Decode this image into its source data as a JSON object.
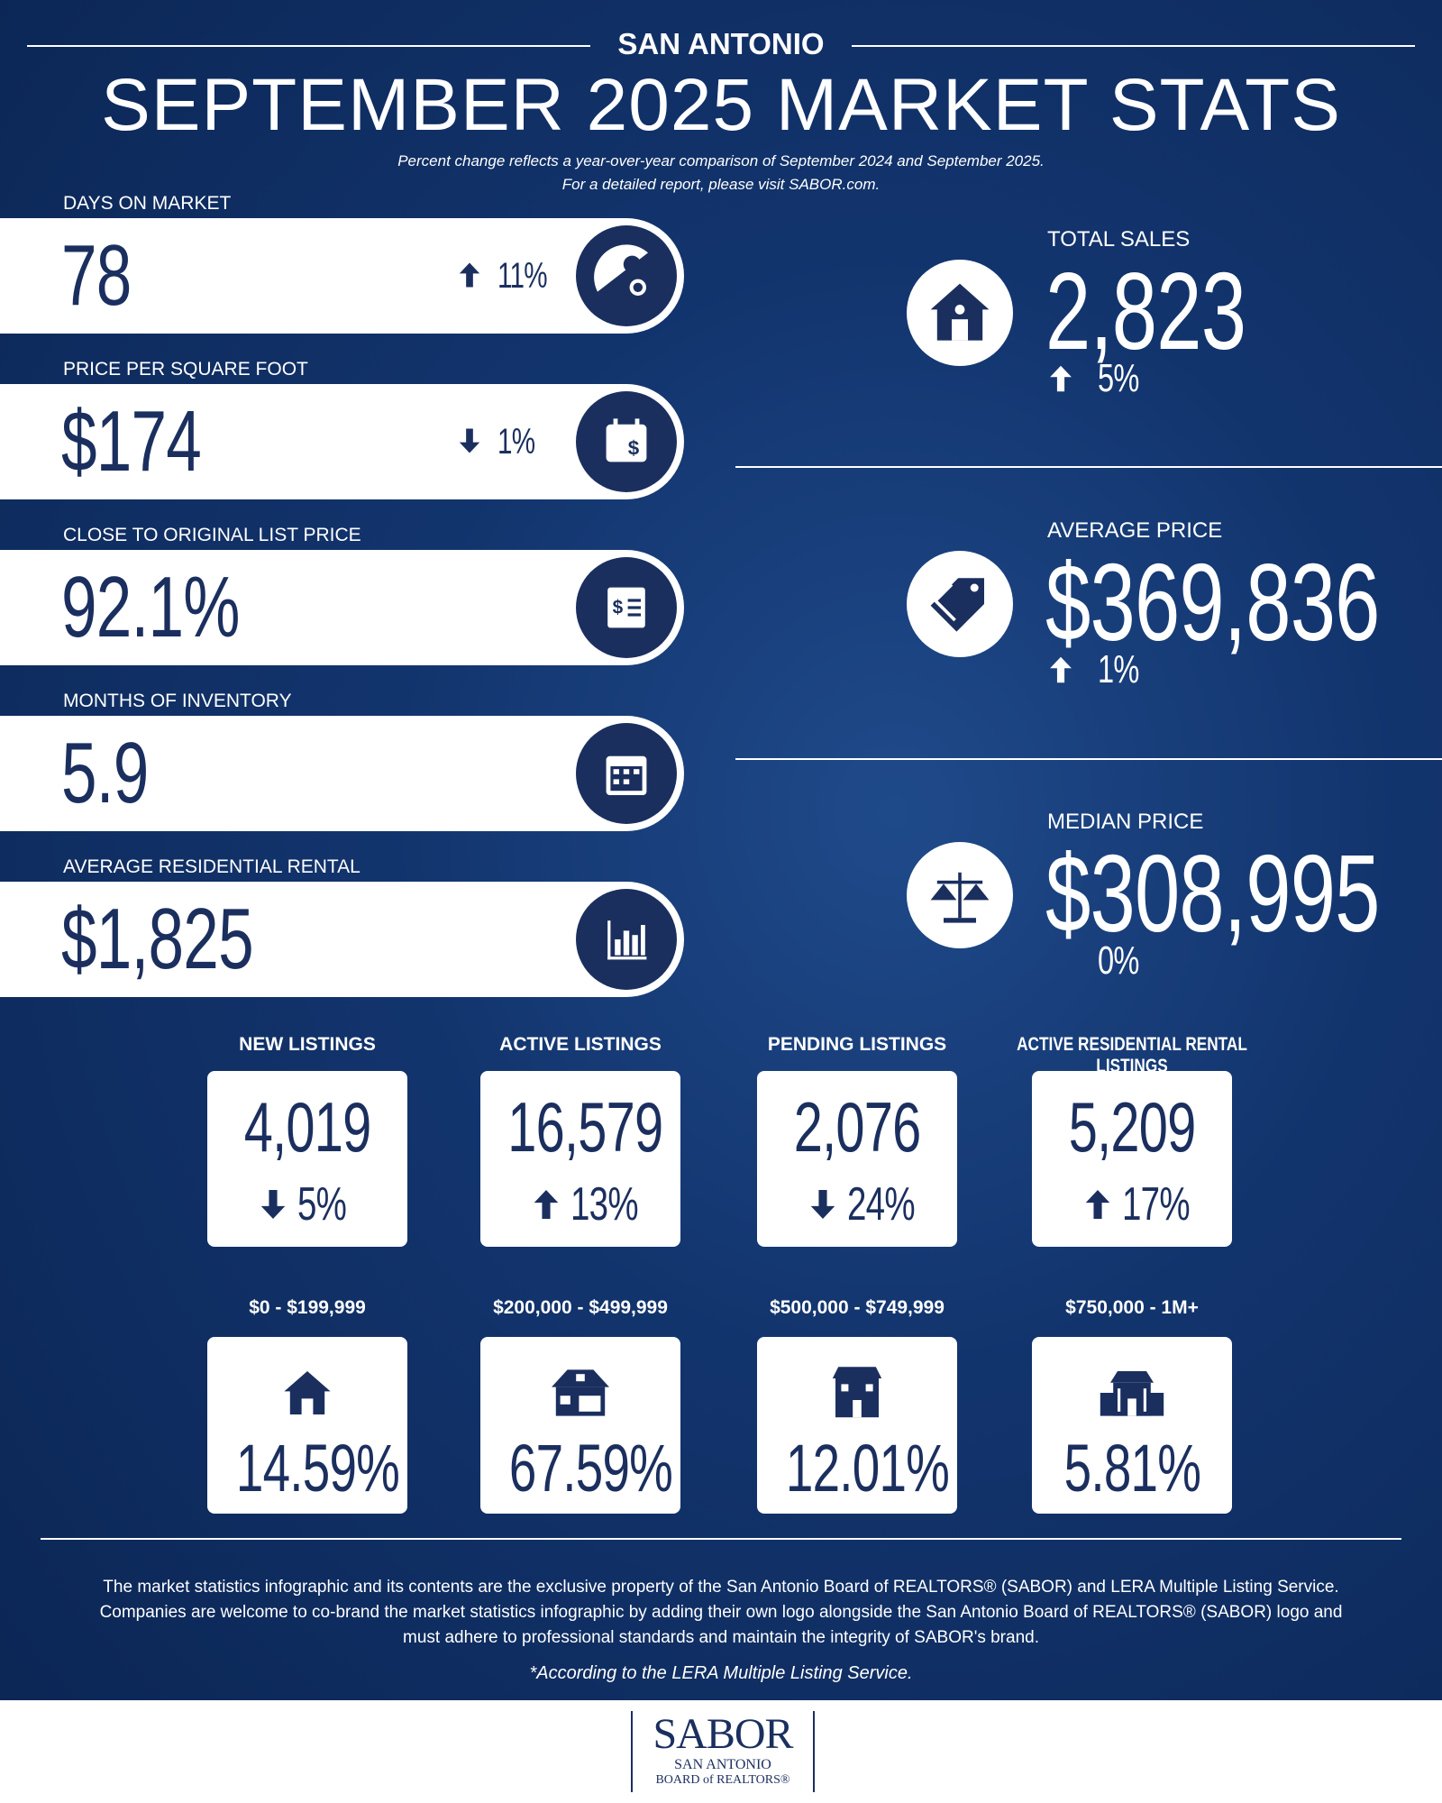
{
  "header": {
    "location": "SAN ANTONIO",
    "title": "SEPTEMBER 2025 MARKET STATS",
    "notes": [
      "Percent change reflects a year-over-year comparison of September 2024 and September 2025.",
      "For a detailed report, please visit SABOR.com."
    ]
  },
  "left_stats": [
    {
      "label": "DAYS ON MARKET",
      "value": "78",
      "change": "11%",
      "trend": "up"
    },
    {
      "label": "PRICE PER SQUARE FOOT",
      "value": "$174",
      "change": "1%",
      "trend": "down"
    },
    {
      "label": "CLOSE TO ORIGINAL LIST PRICE",
      "value": "92.1%"
    },
    {
      "label": "MONTHS OF INVENTORY",
      "value": "5.9"
    },
    {
      "label": "AVERAGE RESIDENTIAL RENTAL",
      "value": "$1,825"
    }
  ],
  "right_stats": [
    {
      "label": "TOTAL SALES",
      "value": "2,823",
      "change": "5%",
      "trend": "up"
    },
    {
      "label": "AVERAGE PRICE",
      "value": "$369,836",
      "change": "1%",
      "trend": "up"
    },
    {
      "label": "MEDIAN PRICE",
      "value": "$308,995",
      "change": "0%"
    }
  ],
  "listings": [
    {
      "label": "NEW LISTINGS",
      "value": "4,019",
      "change": "5%",
      "trend": "down"
    },
    {
      "label": "ACTIVE LISTINGS",
      "value": "16,579",
      "change": "13%",
      "trend": "up"
    },
    {
      "label": "PENDING LISTINGS",
      "value": "2,076",
      "change": "24%",
      "trend": "down"
    },
    {
      "label": "ACTIVE RESIDENTIAL RENTAL LISTINGS",
      "value": "5,209",
      "change": "17%",
      "trend": "up"
    }
  ],
  "price_ranges": [
    {
      "label": "$0 - $199,999",
      "share": "14.59%"
    },
    {
      "label": "$200,000 - $499,999",
      "share": "67.59%"
    },
    {
      "label": "$500,000 - $749,999",
      "share": "12.01%"
    },
    {
      "label": "$750,000 - 1M+",
      "share": "5.81%"
    }
  ],
  "footer": {
    "disclaimer": [
      "The market statistics infographic and its contents are the exclusive property of the San Antonio Board of REALTORS® (SABOR) and LERA Multiple Listing Service.",
      "Companies are welcome to co-brand the market statistics infographic by adding their own logo alongside the San Antonio Board of REALTORS® (SABOR) logo and",
      "must adhere to professional standards and maintain the integrity of SABOR's brand."
    ],
    "note": "*According to the LERA Multiple Listing Service."
  },
  "logo": {
    "name": "SABOR",
    "lines": [
      "SAN ANTONIO",
      "BOARD of REALTORS®"
    ]
  }
}
